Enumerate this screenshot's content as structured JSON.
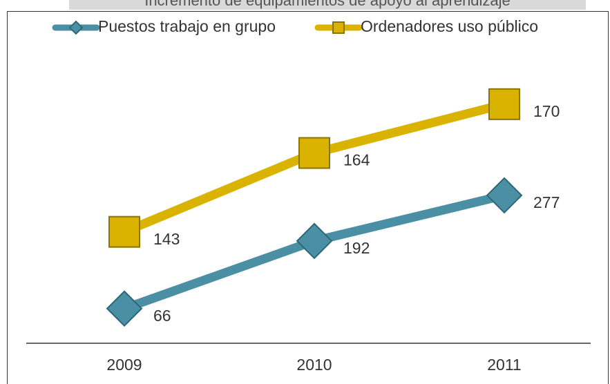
{
  "chart_data": {
    "type": "line",
    "stacked": true,
    "title": "Incremento de equipamientos de apoyo al aprendizaje",
    "categories": [
      "2009",
      "2010",
      "2011"
    ],
    "series": [
      {
        "name": "Puestos  trabajo en grupo",
        "color": "#4a8fa3",
        "marker": "diamond",
        "values": [
          66,
          192,
          277
        ]
      },
      {
        "name": "Ordenadores  uso público",
        "color": "#d9b300",
        "marker": "square",
        "values": [
          143,
          164,
          170
        ]
      }
    ],
    "ylim": [
      0,
      600
    ],
    "legend": "top",
    "grid": false
  }
}
